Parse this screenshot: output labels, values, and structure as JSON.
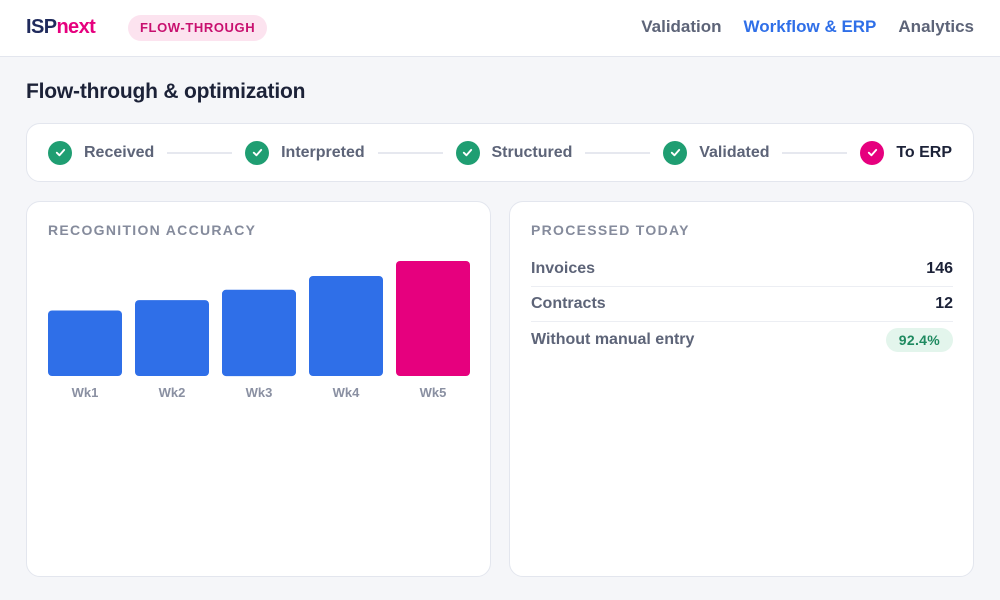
{
  "header": {
    "logo_prefix": "ISP",
    "logo_suffix": "next",
    "badge": "FLOW-THROUGH",
    "nav": [
      {
        "label": "Validation",
        "active": false
      },
      {
        "label": "Workflow & ERP",
        "active": true
      },
      {
        "label": "Analytics",
        "active": false
      }
    ]
  },
  "page_title": "Flow-through & optimization",
  "pipeline": {
    "steps": [
      {
        "label": "Received",
        "status": "done",
        "icon": "check-icon"
      },
      {
        "label": "Interpreted",
        "status": "done",
        "icon": "check-icon"
      },
      {
        "label": "Structured",
        "status": "done",
        "icon": "check-icon"
      },
      {
        "label": "Validated",
        "status": "done",
        "icon": "check-icon"
      },
      {
        "label": "To ERP",
        "status": "current",
        "icon": "check-icon"
      }
    ]
  },
  "accuracy_card": {
    "title": "RECOGNITION ACCURACY"
  },
  "processed_card": {
    "title": "PROCESSED TODAY",
    "rows": [
      {
        "label": "Invoices",
        "value": "146"
      },
      {
        "label": "Contracts",
        "value": "12"
      },
      {
        "label": "Without manual entry",
        "value": "92.4%"
      }
    ]
  },
  "colors": {
    "brand_navy": "#1f2a5c",
    "brand_magenta": "#e6007e",
    "accent_blue": "#2f6fe8",
    "success_green": "#1f9e72"
  },
  "chart_data": {
    "type": "bar",
    "categories": [
      "Wk1",
      "Wk2",
      "Wk3",
      "Wk4",
      "Wk5"
    ],
    "values": [
      0.57,
      0.66,
      0.75,
      0.87,
      1.0
    ],
    "highlight_index": 4,
    "bar_color": "#2f6fe8",
    "highlight_color": "#e6007e",
    "title": "",
    "xlabel": "",
    "ylabel": "",
    "ylim": [
      0,
      1
    ]
  }
}
